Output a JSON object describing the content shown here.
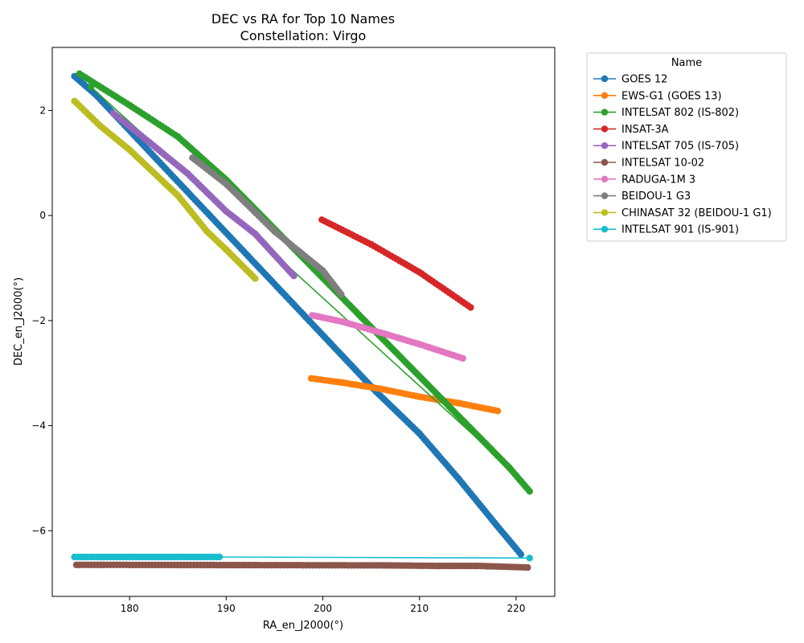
{
  "chart_data": {
    "type": "line",
    "title": "DEC vs RA for Top 10 Names",
    "subtitle": "Constellation: Virgo",
    "xlabel": "RA_en_J2000(°)",
    "ylabel": "DEC_en_J2000(°)",
    "xlim": [
      172,
      224
    ],
    "ylim": [
      -7.25,
      3.2
    ],
    "xticks": [
      180,
      190,
      200,
      210,
      220
    ],
    "yticks": [
      2,
      0,
      -2,
      -4,
      -6
    ],
    "ytick_labels": [
      "2",
      "0",
      "−2",
      "−4",
      "−6"
    ],
    "grid": false,
    "legend": {
      "title": "Name",
      "placement": "outside-upper-right"
    },
    "series": [
      {
        "name": "GOES 12",
        "color": "#1f77b4",
        "segments": [
          [
            [
              174.3,
              2.65
            ],
            [
              176.5,
              2.3
            ]
          ],
          [
            [
              176.5,
              2.3
            ],
            [
              205.5,
              -3.35
            ],
            [
              210,
              -4.15
            ],
            [
              214,
              -5.0
            ],
            [
              218,
              -5.9
            ],
            [
              220.5,
              -6.45
            ]
          ]
        ]
      },
      {
        "name": "EWS-G1 (GOES 13)",
        "color": "#ff7f0e",
        "segments": [
          [
            [
              198.8,
              -3.1
            ],
            [
              202,
              -3.18
            ],
            [
              206,
              -3.3
            ],
            [
              210,
              -3.45
            ],
            [
              214,
              -3.57
            ],
            [
              218.1,
              -3.72
            ]
          ]
        ]
      },
      {
        "name": "INTELSAT 802 (IS-802)",
        "color": "#2ca02c",
        "segments": [
          [
            [
              174.8,
              2.7
            ],
            [
              180,
              2.1
            ],
            [
              185,
              1.5
            ],
            [
              190,
              0.68
            ]
          ],
          [
            [
              176,
              2.45
            ],
            [
              219.3,
              -4.8
            ]
          ],
          [
            [
              190,
              0.68
            ],
            [
              219.3,
              -4.8
            ],
            [
              221.4,
              -5.25
            ]
          ]
        ]
      },
      {
        "name": "INSAT-3A",
        "color": "#d62728",
        "segments": [
          [
            [
              199.9,
              -0.08
            ],
            [
              205,
              -0.55
            ],
            [
              210,
              -1.08
            ],
            [
              215.3,
              -1.75
            ]
          ]
        ]
      },
      {
        "name": "INTELSAT 705 (IS-705)",
        "color": "#9467bd",
        "segments": [
          [
            [
              178.3,
              1.95
            ],
            [
              182,
              1.4
            ],
            [
              186,
              0.8
            ],
            [
              190,
              0.08
            ],
            [
              193,
              -0.35
            ],
            [
              197,
              -1.15
            ]
          ]
        ]
      },
      {
        "name": "INTELSAT 10-02",
        "color": "#8c564b",
        "segments": [
          [
            [
              174.5,
              -6.65
            ],
            [
              177,
              -6.65
            ],
            [
              206.3,
              -6.66
            ],
            [
              212,
              -6.67
            ],
            [
              216,
              -6.67
            ],
            [
              221.2,
              -6.7
            ]
          ]
        ]
      },
      {
        "name": "RADUGA-1M 3",
        "color": "#e377c2",
        "segments": [
          [
            [
              198.9,
              -1.9
            ],
            [
              202,
              -2.02
            ],
            [
              206,
              -2.23
            ],
            [
              210,
              -2.45
            ],
            [
              214.5,
              -2.72
            ]
          ]
        ]
      },
      {
        "name": "BEIDOU-1 G3",
        "color": "#7f7f7f",
        "segments": [
          [
            [
              186.5,
              1.1
            ],
            [
              190,
              0.6
            ],
            [
              195,
              -0.3
            ],
            [
              200,
              -1.05
            ],
            [
              201.9,
              -1.5
            ]
          ]
        ]
      },
      {
        "name": "CHINASAT 32 (BEIDOU-1 G1)",
        "color": "#bcbd22",
        "segments": [
          [
            [
              174.3,
              2.18
            ],
            [
              177,
              1.7
            ],
            [
              180,
              1.25
            ],
            [
              185,
              0.38
            ],
            [
              188,
              -0.3
            ],
            [
              190,
              -0.65
            ],
            [
              193,
              -1.2
            ]
          ]
        ]
      },
      {
        "name": "INTELSAT 901 (IS-901)",
        "color": "#17becf",
        "segments": [
          [
            [
              174.3,
              -6.5
            ],
            [
              180,
              -6.5
            ],
            [
              185,
              -6.5
            ],
            [
              189.3,
              -6.5
            ]
          ],
          [
            [
              189.3,
              -6.5
            ],
            [
              221.4,
              -6.52
            ]
          ]
        ]
      }
    ]
  }
}
